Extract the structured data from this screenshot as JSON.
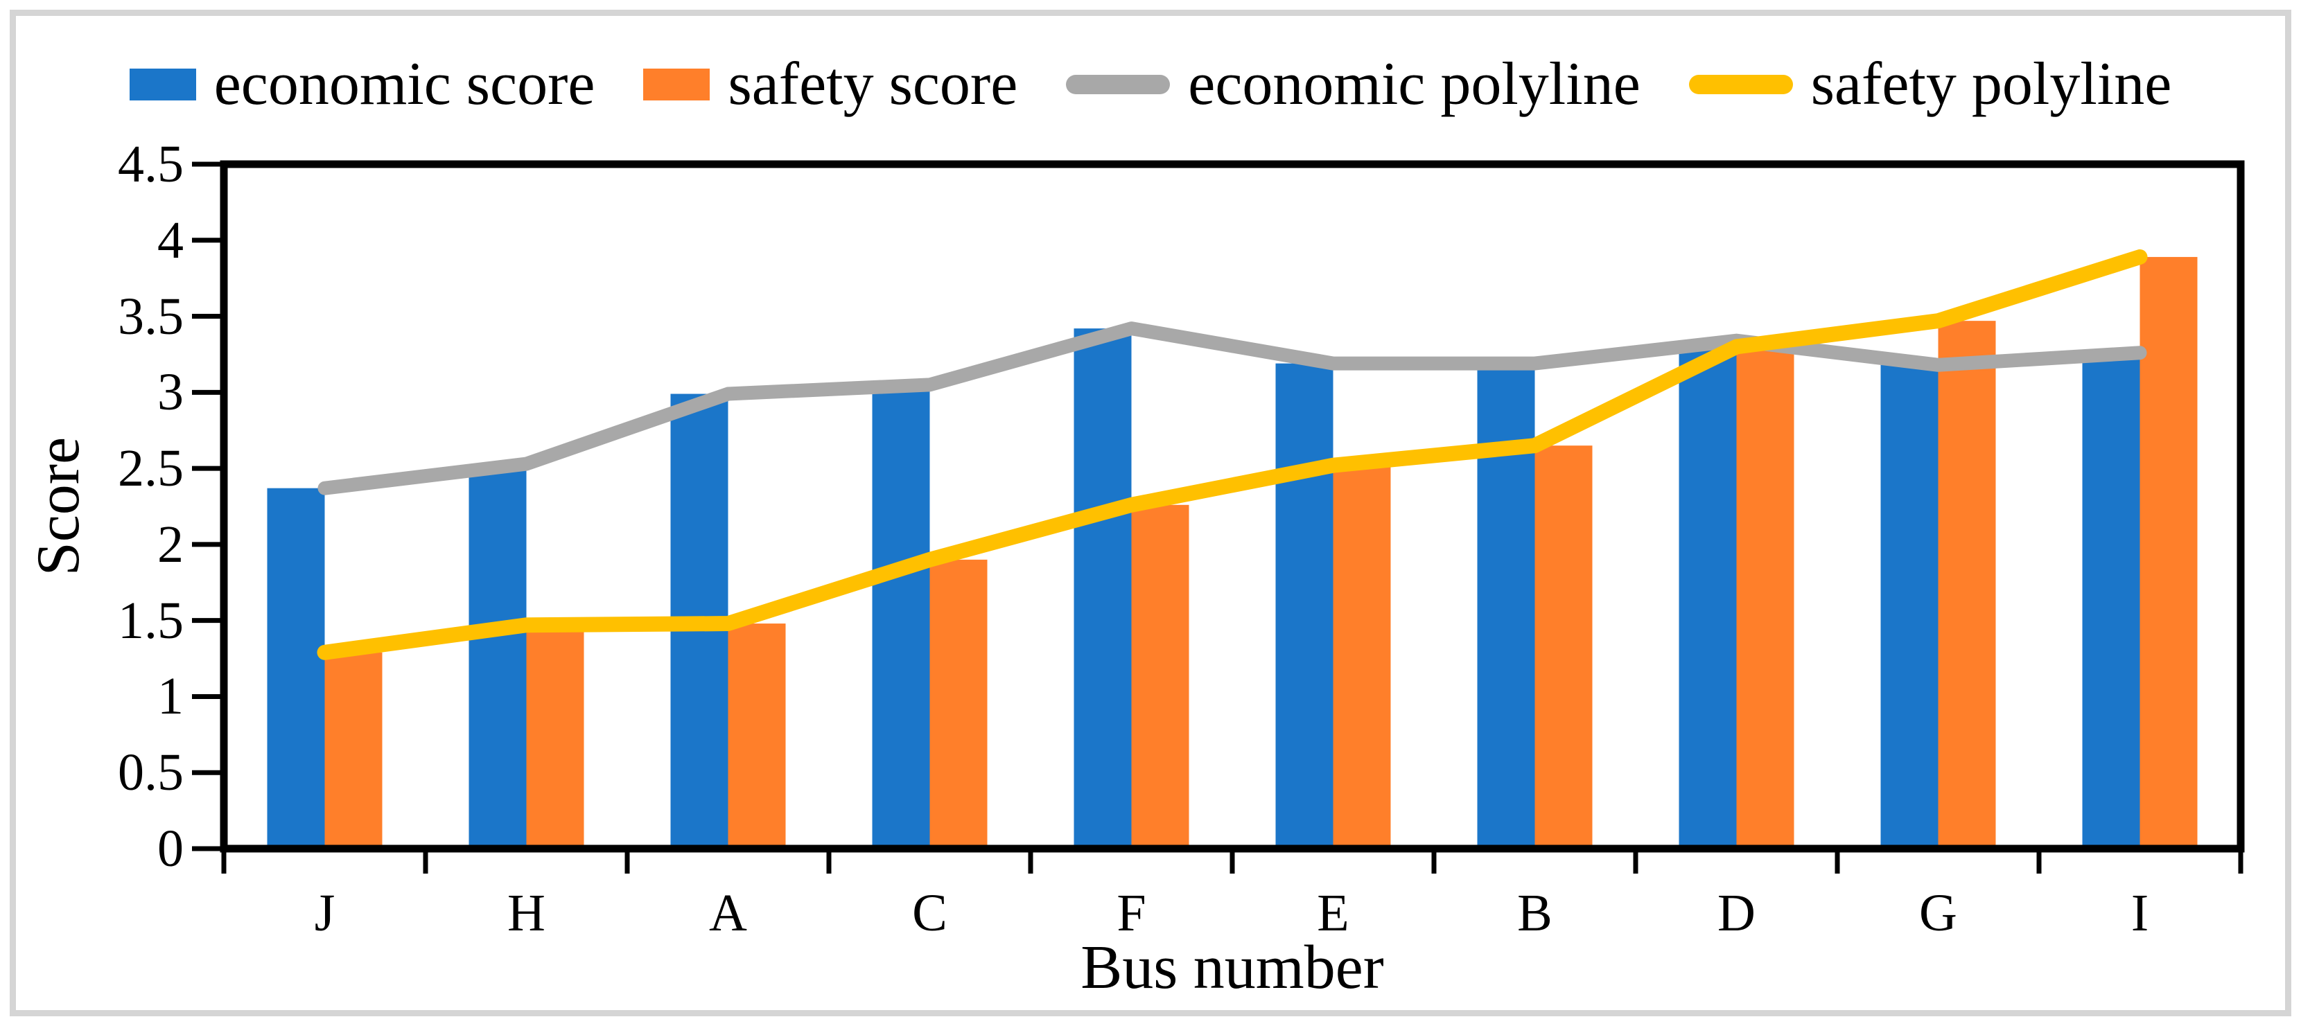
{
  "figure": {
    "border_color": "#d5d5d5",
    "background": "#ffffff"
  },
  "chart_data": {
    "type": "bar",
    "title": "",
    "xlabel": "Bus number",
    "ylabel": "Score",
    "categories": [
      "J",
      "H",
      "A",
      "C",
      "F",
      "E",
      "B",
      "D",
      "G",
      "I"
    ],
    "series": [
      {
        "name": "economic score",
        "render": "bar",
        "color": "#1b76c9",
        "values": [
          2.37,
          2.53,
          2.99,
          3.05,
          3.42,
          3.19,
          3.19,
          3.34,
          3.18,
          3.26
        ]
      },
      {
        "name": "safety score",
        "render": "bar",
        "color": "#ff7f2a",
        "values": [
          1.29,
          1.47,
          1.48,
          1.9,
          2.26,
          2.52,
          2.65,
          3.3,
          3.47,
          3.89
        ]
      },
      {
        "name": "economic polyline",
        "render": "line",
        "color": "#a8a8a8",
        "values": [
          2.37,
          2.53,
          2.99,
          3.05,
          3.42,
          3.19,
          3.19,
          3.34,
          3.18,
          3.26
        ]
      },
      {
        "name": "safety polyline",
        "render": "line",
        "color": "#ffc000",
        "values": [
          1.29,
          1.47,
          1.48,
          1.9,
          2.26,
          2.52,
          2.65,
          3.3,
          3.47,
          3.89
        ]
      }
    ],
    "ylim": [
      0,
      4.5
    ],
    "ytick_step": 0.5,
    "grid": false,
    "legend_position": "top",
    "axis_color": "#000000"
  }
}
